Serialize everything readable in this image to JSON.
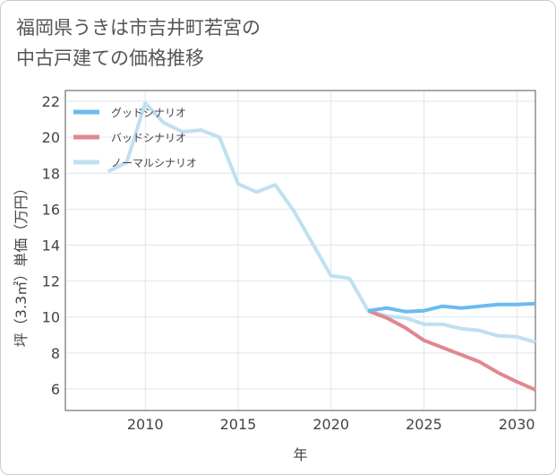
{
  "title_line1": "福岡県うきは市吉井町若宮の",
  "title_line2": "中古戸建ての価格推移",
  "colors": {
    "good": "#6bbbf0",
    "bad": "#e0878f",
    "normal": "#bfe0f0",
    "grid": "#dde6f0",
    "axis": "#555555"
  },
  "chart_data": {
    "type": "line",
    "title": "福岡県うきは市吉井町若宮の中古戸建ての価格推移",
    "xlabel": "年",
    "ylabel": "坪（3.3㎡）単価（万円）",
    "xlim": [
      2005.7,
      2031
    ],
    "ylim": [
      4.8,
      22.6
    ],
    "xticks": [
      2010,
      2015,
      2020,
      2025,
      2030
    ],
    "yticks": [
      6,
      8,
      10,
      12,
      14,
      16,
      18,
      20,
      22
    ],
    "legend_position": "top-left",
    "series": [
      {
        "name": "グッドシナリオ",
        "color": "#6bbbf0",
        "x": [
          2022,
          2023,
          2024,
          2025,
          2026,
          2027,
          2028,
          2029,
          2030,
          2031
        ],
        "y": [
          10.35,
          10.5,
          10.3,
          10.35,
          10.6,
          10.5,
          10.6,
          10.7,
          10.7,
          10.75
        ]
      },
      {
        "name": "バッドシナリオ",
        "color": "#e0878f",
        "x": [
          2022,
          2023,
          2024,
          2025,
          2026,
          2027,
          2028,
          2029,
          2030,
          2031
        ],
        "y": [
          10.35,
          9.95,
          9.4,
          8.7,
          8.3,
          7.9,
          7.5,
          6.9,
          6.4,
          5.95
        ]
      },
      {
        "name": "ノーマルシナリオ",
        "color": "#bfe0f0",
        "x": [
          2008,
          2009,
          2010,
          2011,
          2012,
          2013,
          2014,
          2015,
          2016,
          2017,
          2018,
          2019,
          2020,
          2021,
          2022,
          2023,
          2024,
          2025,
          2026,
          2027,
          2028,
          2029,
          2030,
          2031
        ],
        "y": [
          18.1,
          18.6,
          21.9,
          20.8,
          20.3,
          20.4,
          20.0,
          17.4,
          16.95,
          17.35,
          15.9,
          14.1,
          12.3,
          12.15,
          10.35,
          10.05,
          9.95,
          9.6,
          9.6,
          9.35,
          9.25,
          8.95,
          8.9,
          8.6
        ]
      }
    ]
  }
}
